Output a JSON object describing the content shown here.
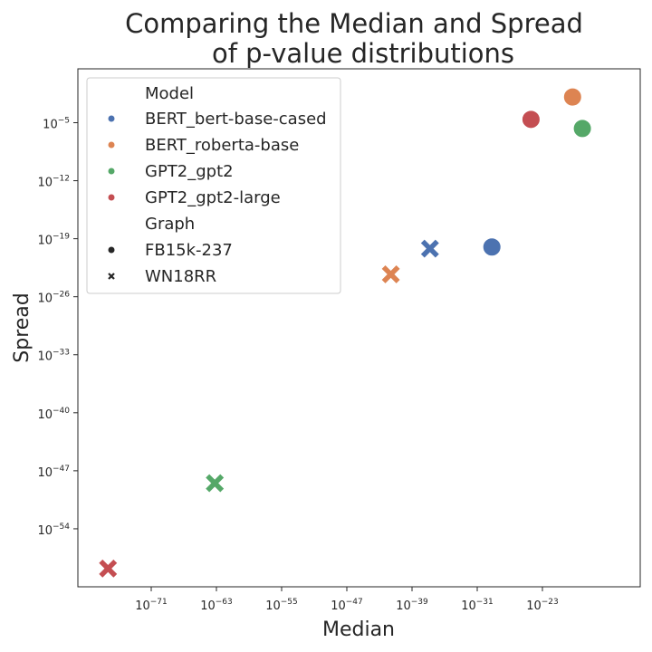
{
  "chart_data": {
    "type": "scatter",
    "title_lines": [
      "Comparing the Median and Spread",
      "of p-value distributions"
    ],
    "xlabel": "Median",
    "ylabel": "Spread",
    "x_scale": "log",
    "y_scale": "log",
    "x_range_exp": [
      -80,
      -11
    ],
    "y_range_exp": [
      -61,
      1.5
    ],
    "x_ticks_exp": [
      "−71",
      "−63",
      "−55",
      "−47",
      "−39",
      "−31",
      "−23"
    ],
    "y_ticks_exp": [
      "−5",
      "−12",
      "−19",
      "−26",
      "−33",
      "−40",
      "−47",
      "−54"
    ],
    "grid": false,
    "legend_position": "top-left",
    "legend": {
      "hue_title": "Model",
      "style_title": "Graph",
      "models": [
        {
          "name": "BERT_bert-base-cased",
          "color": "#4c72b0"
        },
        {
          "name": "BERT_roberta-base",
          "color": "#dd8452"
        },
        {
          "name": "GPT2_gpt2",
          "color": "#55a868"
        },
        {
          "name": "GPT2_gpt2-large",
          "color": "#c44e52"
        }
      ],
      "graphs": [
        {
          "name": "FB15k-237",
          "marker": "circle"
        },
        {
          "name": "WN18RR",
          "marker": "x"
        }
      ]
    },
    "points": [
      {
        "model": "BERT_bert-base-cased",
        "graph": "FB15k-237",
        "x_exp": -29.2,
        "y_exp": -20.0
      },
      {
        "model": "BERT_bert-base-cased",
        "graph": "WN18RR",
        "x_exp": -36.8,
        "y_exp": -20.2
      },
      {
        "model": "BERT_roberta-base",
        "graph": "FB15k-237",
        "x_exp": -19.3,
        "y_exp": -1.9
      },
      {
        "model": "BERT_roberta-base",
        "graph": "WN18RR",
        "x_exp": -41.6,
        "y_exp": -23.3
      },
      {
        "model": "GPT2_gpt2",
        "graph": "FB15k-237",
        "x_exp": -18.1,
        "y_exp": -5.7
      },
      {
        "model": "GPT2_gpt2",
        "graph": "WN18RR",
        "x_exp": -63.2,
        "y_exp": -48.5
      },
      {
        "model": "GPT2_gpt2-large",
        "graph": "FB15k-237",
        "x_exp": -24.4,
        "y_exp": -4.6
      },
      {
        "model": "GPT2_gpt2-large",
        "graph": "WN18RR",
        "x_exp": -76.3,
        "y_exp": -58.8
      }
    ]
  }
}
